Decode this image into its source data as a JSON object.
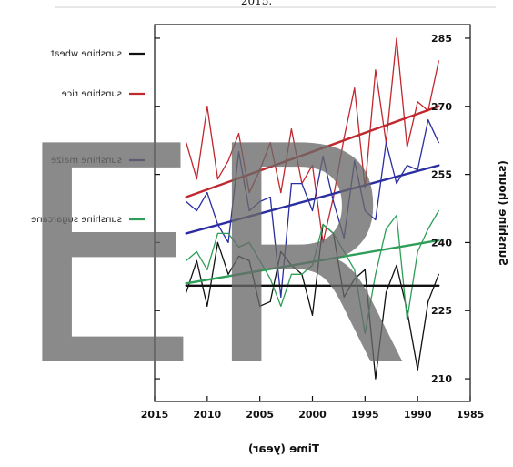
{
  "header_fragment": "2015.",
  "watermark": "ER",
  "chart_data": {
    "type": "line",
    "title": "",
    "xlabel": "Time (year)",
    "ylabel": "Sunshine (hours)",
    "xlim": [
      1985,
      2015
    ],
    "ylim": [
      205,
      288
    ],
    "x_ticks": [
      1985,
      1990,
      1995,
      2000,
      2005,
      2010,
      2015
    ],
    "y_ticks": [
      210,
      225,
      240,
      255,
      270,
      285
    ],
    "grid": false,
    "legend_position": "left",
    "mirrored": true,
    "x": [
      1988,
      1989,
      1990,
      1991,
      1992,
      1993,
      1994,
      1995,
      1996,
      1997,
      1998,
      1999,
      2000,
      2001,
      2002,
      2003,
      2004,
      2005,
      2006,
      2007,
      2008,
      2009,
      2010,
      2011,
      2012
    ],
    "series": [
      {
        "name": "sunshine wheat",
        "color": "#111111",
        "values": [
          233,
          227,
          212,
          225,
          235,
          229,
          210,
          234,
          232,
          228,
          242,
          244,
          224,
          233,
          235,
          238,
          227,
          226,
          236,
          237,
          233,
          240,
          226,
          236,
          229
        ],
        "trend": [
          230.5,
          230.5
        ]
      },
      {
        "name": "sunshine rice",
        "color": "#c0282e",
        "values": [
          280,
          269,
          271,
          261,
          285,
          262,
          278,
          252,
          274,
          263,
          250,
          240,
          257,
          253,
          265,
          251,
          262,
          256,
          251,
          264,
          258,
          254,
          270,
          254,
          262
        ],
        "trend": [
          270,
          250
        ]
      },
      {
        "name": "sunshine maize",
        "color": "#2a2ea0",
        "values": [
          262,
          267,
          256,
          257,
          253,
          262,
          245,
          247,
          258,
          241,
          249,
          259,
          247,
          253,
          253,
          228,
          250,
          249,
          247,
          260,
          240,
          244,
          251,
          247,
          249
        ],
        "trend": [
          257,
          242
        ]
      },
      {
        "name": "sunshine sugarcane",
        "color": "#2e9e58",
        "values": [
          247,
          243,
          238,
          223,
          246,
          243,
          233,
          220,
          234,
          238,
          242,
          244,
          235,
          233,
          233,
          226,
          232,
          236,
          240,
          239,
          242,
          242,
          234,
          238,
          236
        ],
        "trend": [
          240.5,
          231
        ]
      }
    ]
  }
}
